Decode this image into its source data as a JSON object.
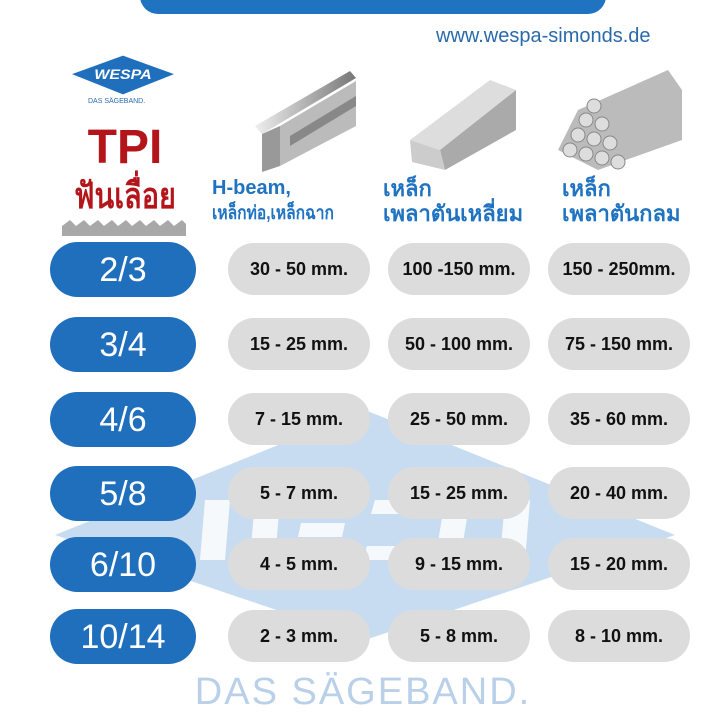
{
  "header": {
    "url": "www.wespa-simonds.de"
  },
  "logo": {
    "brand": "WESPA",
    "tagline": "DAS SÄGEBAND."
  },
  "tpi_header": {
    "title": "TPI",
    "subtitle": "ฟันเลื่อย"
  },
  "columns": [
    {
      "line1": "H-beam,",
      "line2": "เหล็กท่อ,เหล็กฉาก",
      "image": "h-beam-image"
    },
    {
      "line1": "เหล็ก",
      "line2": "เพลาตันเหลี่ยม",
      "image": "square-bar-image"
    },
    {
      "line1": "เหล็ก",
      "line2": "เพลาตันกลม",
      "image": "round-bar-image"
    }
  ],
  "rows": [
    {
      "tpi": "2/3",
      "values": [
        "30 - 50 mm.",
        "100 -150 mm.",
        "150 - 250mm."
      ]
    },
    {
      "tpi": "3/4",
      "values": [
        "15 - 25 mm.",
        "50 - 100 mm.",
        "75 - 150 mm."
      ]
    },
    {
      "tpi": "4/6",
      "values": [
        "7 - 15 mm.",
        "25 - 50 mm.",
        "35 - 60 mm."
      ]
    },
    {
      "tpi": "5/8",
      "values": [
        "5 - 7 mm.",
        "15 - 25 mm.",
        "20 - 40 mm."
      ]
    },
    {
      "tpi": "6/10",
      "values": [
        "4 - 5 mm.",
        "9 - 15 mm.",
        "15 - 20 mm."
      ]
    },
    {
      "tpi": "10/14",
      "values": [
        "2 - 3 mm.",
        "5 - 8 mm.",
        "8 - 10 mm."
      ]
    }
  ],
  "footer": {
    "text": "DAS SÄGEBAND."
  },
  "colors": {
    "blue": "#1f73c1",
    "red": "#b3151b",
    "cell": "#dcdcdc",
    "watermark": "#b9d0e8"
  }
}
